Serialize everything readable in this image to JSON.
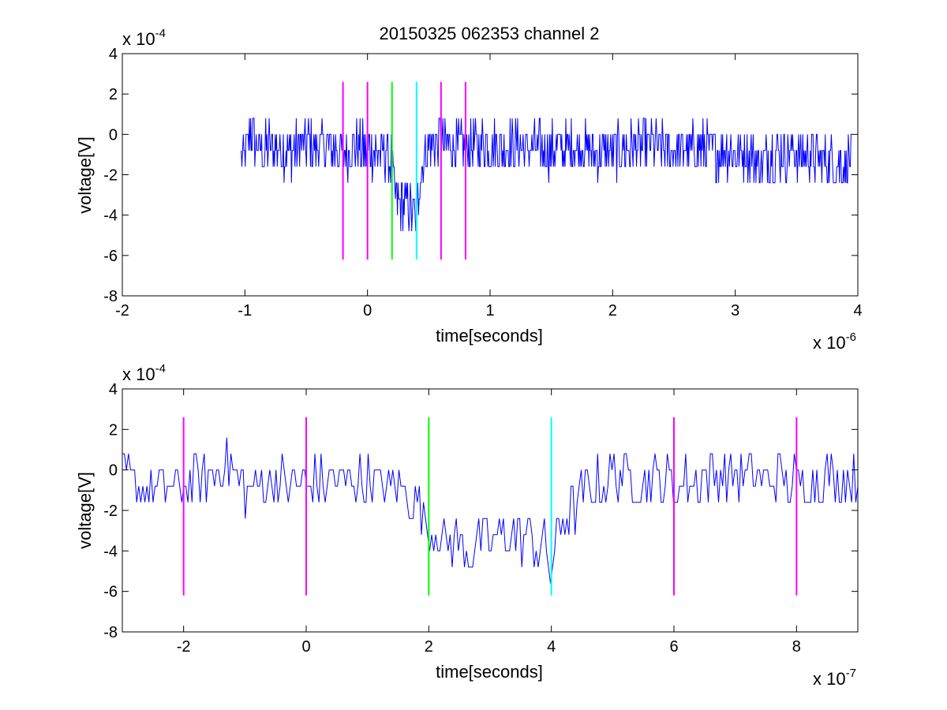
{
  "chart_data": [
    {
      "type": "line",
      "title": "20150325 062353 channel 2",
      "xlabel": "time[seconds]",
      "ylabel": "voltage[V]",
      "x_exponent_label": "x 10",
      "x_exponent": "-6",
      "y_exponent_label": "x 10",
      "y_exponent": "-4",
      "xlim": [
        -2,
        4
      ],
      "ylim": [
        -8,
        4
      ],
      "x_ticks": [
        "-2",
        "-1",
        "0",
        "1",
        "2",
        "3",
        "4"
      ],
      "y_ticks": [
        "-8",
        "-6",
        "-4",
        "-2",
        "0",
        "2",
        "4"
      ],
      "grid": false,
      "series": [
        {
          "color": "#0000ff",
          "description": "noisy voltage trace, x in units of 1e-6 s, y in units of 1e-4 V",
          "x": [
            -1.03,
            -0.98,
            -0.95,
            -0.9,
            -0.85,
            -0.8,
            -0.75,
            -0.7,
            -0.6,
            -0.5,
            -0.4,
            -0.3,
            -0.2,
            -0.1,
            0.0,
            0.1,
            0.15,
            0.2,
            0.22,
            0.26,
            0.3,
            0.34,
            0.38,
            0.4,
            0.42,
            0.46,
            0.5,
            0.6,
            0.7,
            0.8,
            0.9,
            1.0,
            1.1,
            1.2,
            1.3,
            1.5,
            1.7,
            1.9,
            2.1,
            2.3,
            2.5,
            2.7,
            2.9,
            3.1,
            3.2,
            3.3,
            3.5,
            3.7,
            3.8,
            3.9,
            3.95
          ],
          "y": [
            -1.0,
            -0.8,
            0.3,
            -0.6,
            -1.0,
            -0.5,
            -0.9,
            -0.7,
            -0.8,
            -0.5,
            -0.6,
            -0.7,
            -0.9,
            -0.6,
            -0.8,
            -0.9,
            -0.8,
            -1.5,
            -3.2,
            -3.3,
            -3.4,
            -3.6,
            -4.0,
            -4.5,
            -2.5,
            -1.0,
            -0.5,
            -0.3,
            -0.6,
            -0.7,
            -0.5,
            -0.6,
            -0.8,
            -0.5,
            -0.7,
            -0.8,
            -0.6,
            -0.9,
            -0.7,
            -0.6,
            -0.8,
            -0.7,
            -0.9,
            -0.8,
            -1.5,
            -1.0,
            -0.9,
            -1.2,
            -1.5,
            -1.4,
            -1.0
          ]
        }
      ],
      "markers": [
        {
          "x": -0.2,
          "color": "#ff00ff"
        },
        {
          "x": 0.0,
          "color": "#ff00ff"
        },
        {
          "x": 0.2,
          "color": "#00ff00"
        },
        {
          "x": 0.4,
          "color": "#00ffff"
        },
        {
          "x": 0.6,
          "color": "#ff00ff"
        },
        {
          "x": 0.8,
          "color": "#ff00ff"
        }
      ],
      "marker_range": [
        -6.2,
        2.6
      ]
    },
    {
      "type": "line",
      "xlabel": "time[seconds]",
      "ylabel": "voltage[V]",
      "x_exponent_label": "x 10",
      "x_exponent": "-7",
      "y_exponent_label": "x 10",
      "y_exponent": "-4",
      "xlim": [
        -3,
        9
      ],
      "ylim": [
        -8,
        4
      ],
      "x_ticks": [
        "-2",
        "0",
        "2",
        "4",
        "6",
        "8"
      ],
      "y_ticks": [
        "-8",
        "-6",
        "-4",
        "-2",
        "0",
        "2",
        "4"
      ],
      "grid": false,
      "series": [
        {
          "color": "#0000ff",
          "description": "zoomed voltage trace, x in units of 1e-7 s, y in units of 1e-4 V",
          "x": [
            -3.0,
            -2.5,
            -2.0,
            -1.5,
            -1.3,
            -1.0,
            -0.5,
            0.0,
            0.5,
            1.0,
            1.5,
            1.8,
            2.0,
            2.3,
            2.6,
            3.0,
            3.3,
            3.6,
            3.9,
            4.0,
            4.1,
            4.3,
            4.6,
            5.0,
            5.5,
            6.0,
            6.5,
            7.0,
            7.5,
            8.0,
            8.5,
            9.0
          ],
          "y": [
            -0.5,
            -0.8,
            -0.9,
            -0.3,
            0.5,
            -0.9,
            -0.6,
            -0.7,
            -0.5,
            -0.6,
            -0.8,
            -1.5,
            -3.0,
            -3.5,
            -3.8,
            -3.5,
            -3.3,
            -3.4,
            -4.0,
            -5.2,
            -3.0,
            -2.0,
            -1.0,
            -0.3,
            -0.5,
            -0.8,
            -0.3,
            -0.1,
            -0.4,
            -0.6,
            -0.3,
            -0.6
          ]
        }
      ],
      "markers": [
        {
          "x": -2,
          "color": "#ff00ff"
        },
        {
          "x": 0,
          "color": "#ff00ff"
        },
        {
          "x": 2,
          "color": "#00ff00"
        },
        {
          "x": 4,
          "color": "#00ffff"
        },
        {
          "x": 6,
          "color": "#ff00ff"
        },
        {
          "x": 8,
          "color": "#ff00ff"
        }
      ],
      "marker_range": [
        -6.2,
        2.6
      ]
    }
  ]
}
